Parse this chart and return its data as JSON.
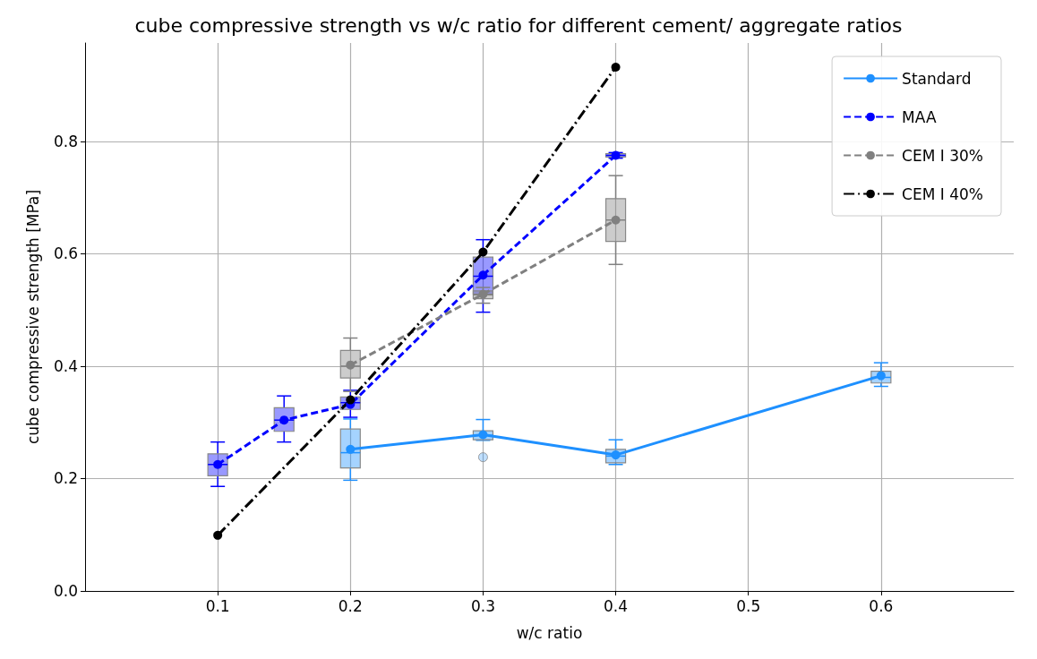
{
  "chart_data": {
    "type": "line",
    "title": "cube compressive strength vs w/c ratio for different cement/ aggregate ratios",
    "xlabel": "w/c ratio",
    "ylabel": "cube compressive strength [MPa]",
    "xlim": [
      0,
      0.7
    ],
    "xticks": [
      0.1,
      0.2,
      0.3,
      0.4,
      0.5,
      0.6
    ],
    "ylim": [
      0,
      0.975
    ],
    "yticks": [
      {
        "value": 0,
        "label": "0.0"
      },
      0.2,
      0.4,
      0.6,
      0.8
    ],
    "grid": true,
    "legend": "top right",
    "marker": "circle",
    "series": [
      {
        "type": "box",
        "color": "#1e90ff",
        "x": [
          0.2,
          0.3,
          0.4,
          0.6
        ],
        "boxes": [
          {
            "low": 0.197,
            "q1": 0.219,
            "median": 0.246,
            "q3": 0.288,
            "high": 0.306
          },
          {
            "low": 0.268,
            "q1": 0.269,
            "median": 0.277,
            "q3": 0.285,
            "high": 0.305,
            "outliers": [
              0.238
            ]
          },
          {
            "low": 0.225,
            "q1": 0.228,
            "median": 0.24,
            "q3": 0.252,
            "high": 0.269
          },
          {
            "low": 0.364,
            "q1": 0.37,
            "median": 0.38,
            "q3": 0.391,
            "high": 0.406
          }
        ]
      },
      {
        "type": "box",
        "color": "#0000ff",
        "x": [
          0.1,
          0.15,
          0.2,
          0.3,
          0.4
        ],
        "boxes": [
          {
            "low": 0.186,
            "q1": 0.205,
            "median": 0.225,
            "q3": 0.244,
            "high": 0.265
          },
          {
            "low": 0.265,
            "q1": 0.284,
            "median": 0.304,
            "q3": 0.326,
            "high": 0.347
          },
          {
            "low": 0.309,
            "q1": 0.323,
            "median": 0.335,
            "q3": 0.345,
            "high": 0.357
          },
          {
            "low": 0.496,
            "q1": 0.528,
            "median": 0.56,
            "q3": 0.594,
            "high": 0.625
          },
          {
            "low": 0.77,
            "q1": 0.772,
            "median": 0.775,
            "q3": 0.778,
            "high": 0.78
          }
        ]
      },
      {
        "type": "box",
        "color": "#808080",
        "x": [
          0.2,
          0.3,
          0.4
        ],
        "boxes": [
          {
            "low": 0.355,
            "q1": 0.379,
            "median": 0.4,
            "q3": 0.428,
            "high": 0.45
          },
          {
            "low": 0.512,
            "q1": 0.52,
            "median": 0.527,
            "q3": 0.534,
            "high": 0.54
          },
          {
            "low": 0.581,
            "q1": 0.622,
            "median": 0.66,
            "q3": 0.698,
            "high": 0.739
          }
        ]
      },
      {
        "name": "Standard",
        "color": "#1e90ff",
        "line_style": "solid",
        "x": [
          0.2,
          0.3,
          0.4,
          0.6
        ],
        "values": [
          0.252,
          0.278,
          0.242,
          0.383
        ]
      },
      {
        "name": "MAA",
        "color": "#0000ff",
        "line_style": "dashed",
        "x": [
          0.1,
          0.15,
          0.2,
          0.3,
          0.4
        ],
        "values": [
          0.225,
          0.304,
          0.332,
          0.562,
          0.775
        ]
      },
      {
        "name": "CEM I 30%",
        "color": "#808080",
        "line_style": "dashed",
        "x": [
          0.2,
          0.3,
          0.4
        ],
        "values": [
          0.402,
          0.528,
          0.66
        ]
      },
      {
        "name": "CEM I 40%",
        "color": "#000000",
        "line_style": "dashdot",
        "x": [
          0.1,
          0.2,
          0.3,
          0.4
        ],
        "values": [
          0.099,
          0.34,
          0.603,
          0.932
        ]
      }
    ]
  }
}
